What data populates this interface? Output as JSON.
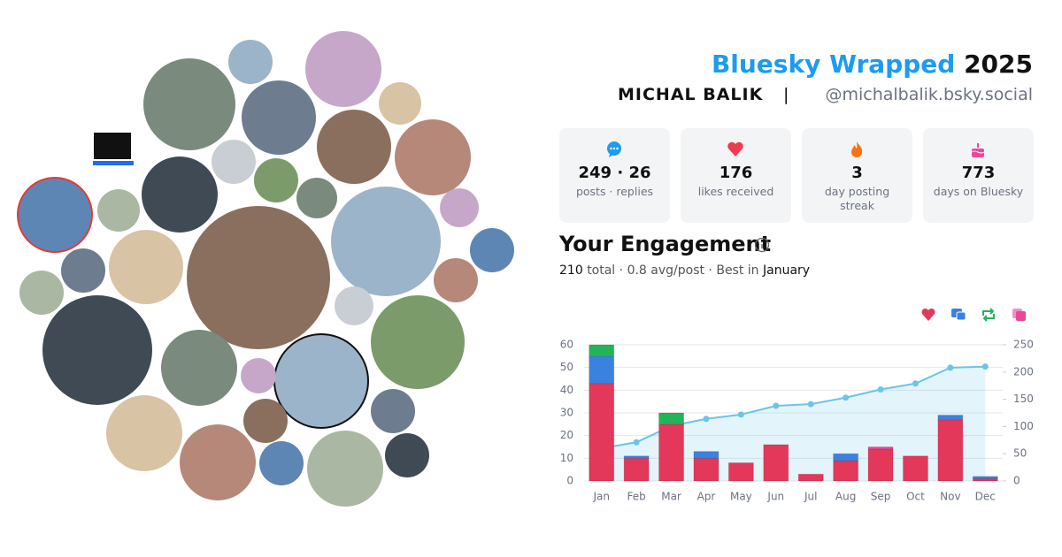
{
  "header": {
    "title": "Bluesky Wrapped",
    "year": "2025",
    "name": "MICHAL BALIK",
    "separator": "|",
    "handle": "@michalbalik.bsky.social"
  },
  "stats": [
    {
      "value": "249 · 26",
      "label": "posts · replies"
    },
    {
      "value": 176,
      "label": "likes received"
    },
    {
      "value": 3,
      "label": "day posting streak"
    },
    {
      "value": 773,
      "label": "days on Bluesky"
    }
  ],
  "engagement": {
    "heading": "Your Engagement",
    "total": 210,
    "total_text": "total ·",
    "avg": 0.8,
    "avg_text": "avg/post · Best in",
    "best": "January"
  },
  "chart_data": {
    "type": "bar",
    "stacked": true,
    "grid": true,
    "categories": [
      "Jan",
      "Feb",
      "Mar",
      "Apr",
      "May",
      "Jun",
      "Jul",
      "Aug",
      "Sep",
      "Oct",
      "Nov",
      "Dec"
    ],
    "series": [
      {
        "color": "#e3385a",
        "values": [
          43,
          10,
          25,
          10,
          8,
          16,
          3,
          9,
          14,
          11,
          27,
          1
        ]
      },
      {
        "color": "#3b82e0",
        "values": [
          12,
          1,
          0,
          3,
          0,
          0,
          0,
          3,
          0,
          0,
          2,
          1
        ]
      },
      {
        "color": "#22b457",
        "values": [
          5,
          0,
          5,
          0,
          0,
          0,
          0,
          0,
          0,
          0,
          0,
          0
        ]
      },
      {
        "color": "#e8489a",
        "values": [
          0,
          0,
          0,
          0,
          0,
          0,
          0,
          0,
          1,
          0,
          0,
          0
        ]
      },
      {
        "type": "line",
        "axis": "y2",
        "color": "#6cc4e8",
        "values": [
          60,
          71,
          101,
          114,
          122,
          138,
          141,
          153,
          168,
          179,
          208,
          210
        ]
      }
    ],
    "ylim": [
      0,
      60
    ],
    "yticks": [
      0,
      10,
      20,
      30,
      40,
      50,
      60
    ],
    "y2lim": [
      0,
      250
    ],
    "y2ticks": [
      0,
      50,
      100,
      150,
      200,
      250
    ]
  }
}
